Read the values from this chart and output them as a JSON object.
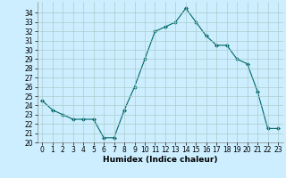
{
  "x": [
    0,
    1,
    2,
    3,
    4,
    5,
    6,
    7,
    8,
    9,
    10,
    11,
    12,
    13,
    14,
    15,
    16,
    17,
    18,
    19,
    20,
    21,
    22,
    23
  ],
  "y": [
    24.5,
    23.5,
    23.0,
    22.5,
    22.5,
    22.5,
    20.5,
    20.5,
    23.5,
    26.0,
    29.0,
    32.0,
    32.5,
    33.0,
    34.5,
    33.0,
    31.5,
    30.5,
    30.5,
    29.0,
    28.5,
    25.5,
    21.5,
    21.5
  ],
  "xlabel": "Humidex (Indice chaleur)",
  "bg_color": "#cceeff",
  "grid_color": "#aacccc",
  "line_color": "#006666",
  "marker_color": "#006666",
  "ylim": [
    20,
    35
  ],
  "xlim": [
    -0.5,
    23.5
  ],
  "yticks": [
    20,
    21,
    22,
    23,
    24,
    25,
    26,
    27,
    28,
    29,
    30,
    31,
    32,
    33,
    34
  ],
  "xticks": [
    0,
    1,
    2,
    3,
    4,
    5,
    6,
    7,
    8,
    9,
    10,
    11,
    12,
    13,
    14,
    15,
    16,
    17,
    18,
    19,
    20,
    21,
    22,
    23
  ],
  "tick_fontsize": 5.5,
  "xlabel_fontsize": 6.5
}
